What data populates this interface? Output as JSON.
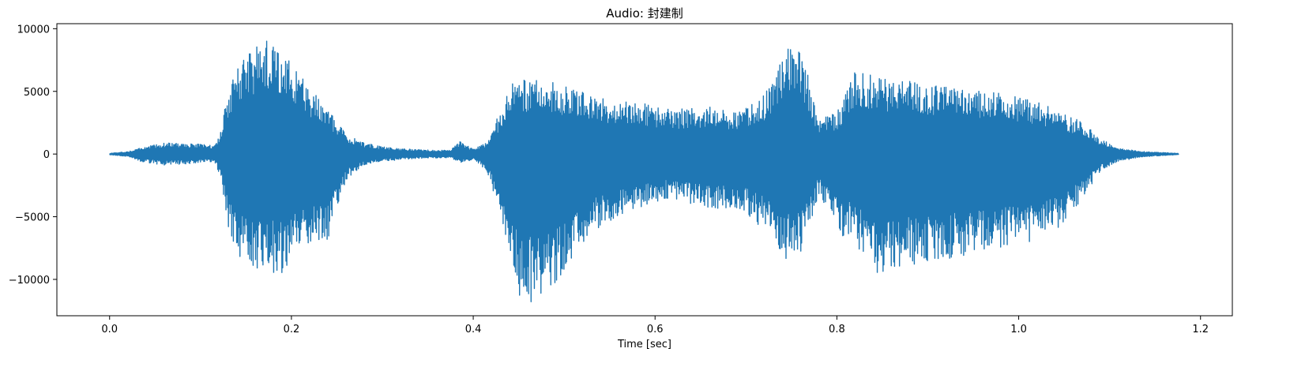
{
  "chart_data": {
    "type": "line",
    "title": "Audio: 封建制",
    "xlabel": "Time [sec]",
    "ylabel": "",
    "xlim": [
      -0.058,
      1.235
    ],
    "ylim": [
      -12900,
      10400
    ],
    "grid": false,
    "legend": "none",
    "x_ticks": [
      0.0,
      0.2,
      0.4,
      0.6,
      0.8,
      1.0,
      1.2
    ],
    "x_tick_labels": [
      "0.0",
      "0.2",
      "0.4",
      "0.6",
      "0.8",
      "1.0",
      "1.2"
    ],
    "y_ticks": [
      10000,
      5000,
      0,
      -5000,
      -10000
    ],
    "y_tick_labels": [
      "10000",
      "5000",
      "0",
      "−5000",
      "−10000"
    ],
    "series": [
      {
        "color": "#1f77b4",
        "duration_sec": 1.176,
        "envelope_t": [
          0.0,
          0.02,
          0.035,
          0.06,
          0.1,
          0.115,
          0.122,
          0.13,
          0.145,
          0.16,
          0.175,
          0.19,
          0.205,
          0.22,
          0.24,
          0.26,
          0.28,
          0.3,
          0.32,
          0.34,
          0.36,
          0.375,
          0.385,
          0.4,
          0.415,
          0.43,
          0.44,
          0.45,
          0.47,
          0.49,
          0.51,
          0.53,
          0.55,
          0.58,
          0.6,
          0.62,
          0.64,
          0.66,
          0.69,
          0.72,
          0.735,
          0.745,
          0.755,
          0.765,
          0.78,
          0.8,
          0.82,
          0.84,
          0.86,
          0.88,
          0.9,
          0.93,
          0.96,
          0.99,
          1.02,
          1.05,
          1.07,
          1.09,
          1.11,
          1.13,
          1.15,
          1.176
        ],
        "envelope_max": [
          50,
          200,
          500,
          900,
          800,
          700,
          1800,
          5000,
          7600,
          8700,
          9300,
          8400,
          6600,
          5400,
          3600,
          1600,
          900,
          600,
          450,
          350,
          300,
          300,
          1000,
          400,
          900,
          3500,
          5500,
          6000,
          6100,
          5800,
          5200,
          4700,
          4300,
          4200,
          3800,
          3500,
          3700,
          3800,
          3300,
          4700,
          6800,
          9000,
          9200,
          7200,
          2800,
          3300,
          6600,
          6300,
          6000,
          6000,
          5600,
          5400,
          5000,
          4800,
          4200,
          3200,
          2600,
          1200,
          500,
          250,
          150,
          50
        ],
        "envelope_min": [
          -50,
          -200,
          -600,
          -900,
          -700,
          -600,
          -2000,
          -6400,
          -8500,
          -9300,
          -9500,
          -9700,
          -8100,
          -7700,
          -6800,
          -2100,
          -900,
          -600,
          -450,
          -350,
          -300,
          -300,
          -700,
          -500,
          -1300,
          -5000,
          -8200,
          -11600,
          -11900,
          -10800,
          -8200,
          -6200,
          -5400,
          -4300,
          -3900,
          -3500,
          -4000,
          -4500,
          -4300,
          -6000,
          -7700,
          -8600,
          -8700,
          -7000,
          -3200,
          -6200,
          -7200,
          -9600,
          -9200,
          -8900,
          -8600,
          -8300,
          -7800,
          -7400,
          -7200,
          -5600,
          -3500,
          -1400,
          -600,
          -300,
          -150,
          -50
        ],
        "values": "waveform — envelope sampled above; min ≈ −11900 at 0.47 s, max ≈ 9400 at 0.17 s"
      }
    ]
  }
}
